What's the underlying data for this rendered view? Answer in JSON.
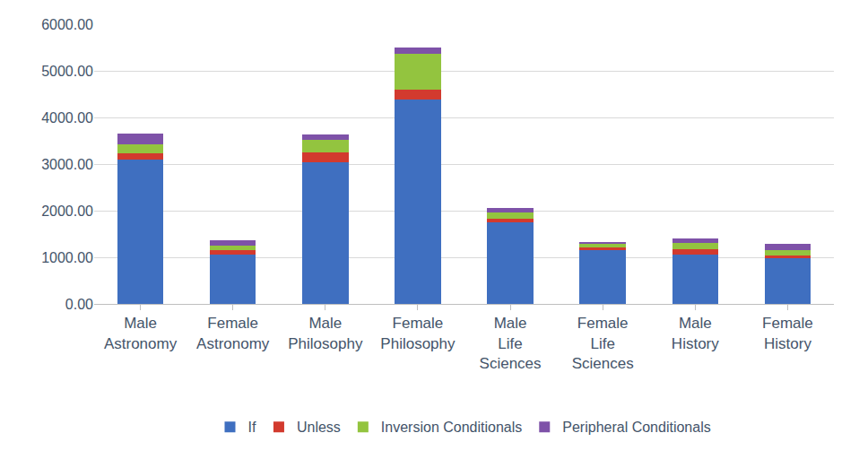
{
  "chart_data": {
    "type": "bar",
    "stacked": true,
    "grid": true,
    "legend": "bottom",
    "categories": [
      "Male\nAstronomy",
      "Female\nAstronomy",
      "Male\nPhilosophy",
      "Female\nPhilosophy",
      "Male\nLife\nSciences",
      "Female\nLife\nSciences",
      "Male\nHistory",
      "Female\nHistory"
    ],
    "series": [
      {
        "name": "If",
        "color": "#3f6fc0",
        "values": [
          3100,
          1060,
          3040,
          4385,
          1750,
          1150,
          1060,
          980
        ]
      },
      {
        "name": "Unless",
        "color": "#d23a2e",
        "values": [
          130,
          90,
          210,
          210,
          80,
          60,
          110,
          60
        ]
      },
      {
        "name": "Inversion Conditionals",
        "color": "#93c43f",
        "values": [
          190,
          100,
          270,
          770,
          130,
          80,
          130,
          110
        ]
      },
      {
        "name": "Peripheral Conditionals",
        "color": "#7e52a8",
        "values": [
          230,
          110,
          110,
          130,
          100,
          40,
          100,
          140
        ]
      }
    ],
    "ylim": [
      0,
      6000
    ],
    "yticks": [
      {
        "value": 0,
        "label": "0.00"
      },
      {
        "value": 1000,
        "label": "1000.00"
      },
      {
        "value": 2000,
        "label": "2000.00"
      },
      {
        "value": 3000,
        "label": "3000.00"
      },
      {
        "value": 4000,
        "label": "4000.00"
      },
      {
        "value": 5000,
        "label": "5000.00"
      },
      {
        "value": 6000,
        "label": "6000.00"
      }
    ]
  }
}
